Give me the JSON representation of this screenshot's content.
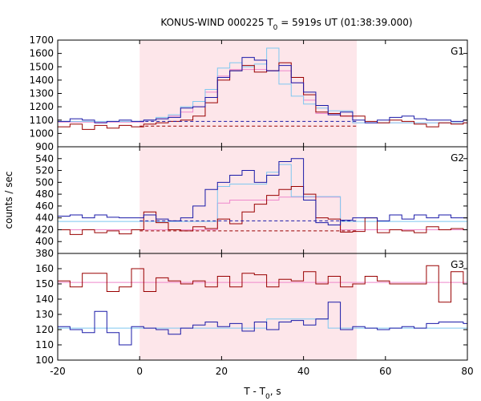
{
  "title": {
    "prefix": "KONUS-WIND 000225 T",
    "sub": "0",
    "suffix": " = 5919s UT (01:38:39.000)"
  },
  "xlabel": {
    "prefix": "T - T",
    "sub": "0",
    "suffix": ", s"
  },
  "ylabel": "counts / sec",
  "colors": {
    "dark_red": "#990000",
    "blue": "#1a1aa8",
    "light_blue": "#7fc8f0",
    "pink": "#ee88cc",
    "shade": "#fde6ea"
  },
  "chart_data": {
    "type": "line",
    "xlim": [
      -20,
      80
    ],
    "x_ticks": [
      -20,
      0,
      20,
      40,
      60,
      80
    ],
    "shaded_interval": [
      0,
      53
    ],
    "bin_edges": [
      -20,
      -17,
      -14,
      -11,
      -8,
      -5,
      -2,
      1,
      4,
      7,
      10,
      13,
      16,
      19,
      22,
      25,
      28,
      31,
      34,
      37,
      40,
      43,
      46,
      49,
      52,
      55,
      58,
      61,
      64,
      67,
      70,
      73,
      76,
      79,
      80
    ],
    "panels": [
      {
        "label": "G1",
        "ylim": [
          900,
          1700
        ],
        "y_ticks": [
          900,
          1000,
          1100,
          1200,
          1300,
          1400,
          1500,
          1600,
          1700
        ],
        "series": [
          {
            "color": "dark_red",
            "values": [
              1050,
              1070,
              1030,
              1060,
              1040,
              1060,
              1050,
              1070,
              1080,
              1090,
              1100,
              1130,
              1230,
              1400,
              1470,
              1510,
              1460,
              1470,
              1530,
              1420,
              1290,
              1160,
              1150,
              1130,
              1130,
              1090,
              1080,
              1100,
              1090,
              1070,
              1050,
              1080,
              1070,
              1080
            ]
          },
          {
            "color": "blue",
            "values": [
              1090,
              1110,
              1100,
              1080,
              1090,
              1100,
              1090,
              1100,
              1110,
              1120,
              1190,
              1200,
              1270,
              1420,
              1470,
              1570,
              1550,
              1470,
              1510,
              1380,
              1310,
              1210,
              1140,
              1160,
              1100,
              1080,
              1100,
              1120,
              1130,
              1110,
              1100,
              1100,
              1090,
              1100
            ]
          },
          {
            "color": "light_blue",
            "type": "step",
            "values": [
              1090,
              1090,
              1090,
              1090,
              1090,
              1090,
              1090,
              1100,
              1120,
              1140,
              1200,
              1240,
              1330,
              1490,
              1530,
              1500,
              1520,
              1640,
              1370,
              1280,
              1220,
              1190,
              1170,
              1170,
              1080,
              1080,
              1080,
              1080,
              1080,
              1080,
              1080,
              1080,
              1080,
              1080
            ]
          },
          {
            "color": "pink",
            "type": "step",
            "values": [
              1085,
              1085,
              1085,
              1085,
              1085,
              1085,
              1085,
              1100,
              1110,
              1130,
              1160,
              1200,
              1310,
              1430,
              1480,
              1480,
              1480,
              1470,
              1470,
              1380,
              1250,
              1150,
              1140,
              1130,
              1080,
              1080,
              1080,
              1080,
              1080,
              1080,
              1080,
              1080,
              1080,
              1080
            ]
          }
        ],
        "backgrounds": [
          {
            "color": "blue",
            "value": 1090,
            "x_range": [
              0,
              53
            ]
          },
          {
            "color": "dark_red",
            "value": 1055,
            "x_range": [
              0,
              53
            ]
          }
        ]
      },
      {
        "label": "G2",
        "ylim": [
          380,
          560
        ],
        "y_ticks": [
          380,
          400,
          420,
          440,
          460,
          480,
          500,
          520,
          540
        ],
        "series": [
          {
            "color": "dark_red",
            "values": [
              420,
              412,
              420,
              415,
              418,
              413,
              420,
              450,
              432,
              420,
              418,
              425,
              422,
              438,
              430,
              450,
              463,
              478,
              488,
              493,
              480,
              440,
              438,
              416,
              417,
              440,
              415,
              420,
              418,
              415,
              425,
              420,
              422,
              420
            ]
          },
          {
            "color": "blue",
            "values": [
              443,
              445,
              440,
              445,
              441,
              440,
              440,
              445,
              438,
              435,
              440,
              460,
              488,
              500,
              512,
              520,
              500,
              512,
              535,
              540,
              470,
              432,
              428,
              436,
              440,
              440,
              435,
              445,
              438,
              445,
              440,
              445,
              440,
              440
            ]
          },
          {
            "color": "light_blue",
            "type": "step",
            "values": [
              434,
              434,
              434,
              434,
              434,
              434,
              434,
              434,
              434,
              434,
              434,
              434,
              434,
              493,
              497,
              497,
              497,
              517,
              530,
              476,
              476,
              476,
              476,
              434,
              434,
              434,
              434,
              434,
              434,
              434,
              434,
              434,
              434,
              434
            ]
          },
          {
            "color": "pink",
            "type": "step",
            "values": [
              420,
              420,
              420,
              420,
              420,
              420,
              420,
              420,
              420,
              420,
              420,
              420,
              420,
              465,
              470,
              470,
              470,
              470,
              475,
              475,
              475,
              475,
              475,
              420,
              420,
              420,
              420,
              420,
              420,
              420,
              420,
              420,
              420,
              420
            ]
          }
        ],
        "backgrounds": [
          {
            "color": "blue",
            "value": 435,
            "x_range": [
              0,
              53
            ]
          },
          {
            "color": "dark_red",
            "value": 418,
            "x_range": [
              0,
              53
            ]
          }
        ]
      },
      {
        "label": "G3",
        "ylim": [
          100,
          170
        ],
        "y_ticks": [
          100,
          110,
          120,
          130,
          140,
          150,
          160
        ],
        "series": [
          {
            "color": "dark_red",
            "values": [
              152,
              148,
              157,
              157,
              145,
              148,
              160,
              145,
              154,
              152,
              150,
              152,
              148,
              155,
              148,
              157,
              156,
              148,
              153,
              152,
              158,
              150,
              155,
              148,
              150,
              155,
              152,
              150,
              150,
              150,
              162,
              138,
              158,
              150
            ]
          },
          {
            "color": "blue",
            "values": [
              122,
              120,
              118,
              132,
              118,
              110,
              122,
              121,
              120,
              117,
              121,
              123,
              125,
              122,
              124,
              119,
              125,
              120,
              125,
              126,
              123,
              127,
              138,
              120,
              122,
              121,
              120,
              121,
              122,
              121,
              124,
              125,
              125,
              124
            ]
          },
          {
            "color": "light_blue",
            "type": "step",
            "values": [
              121,
              121,
              121,
              121,
              121,
              121,
              121,
              121,
              121,
              121,
              121,
              121,
              121,
              121,
              121,
              121,
              121,
              127,
              127,
              127,
              127,
              127,
              121,
              121,
              121,
              121,
              121,
              121,
              121,
              121,
              121,
              121,
              121,
              121
            ]
          },
          {
            "color": "pink",
            "type": "step",
            "values": [
              151,
              151,
              151,
              151,
              151,
              151,
              151,
              151,
              151,
              151,
              151,
              151,
              151,
              151,
              151,
              151,
              151,
              151,
              151,
              151,
              151,
              151,
              151,
              151,
              151,
              151,
              151,
              151,
              151,
              151,
              151,
              151,
              151,
              151
            ]
          }
        ],
        "backgrounds": []
      }
    ]
  }
}
